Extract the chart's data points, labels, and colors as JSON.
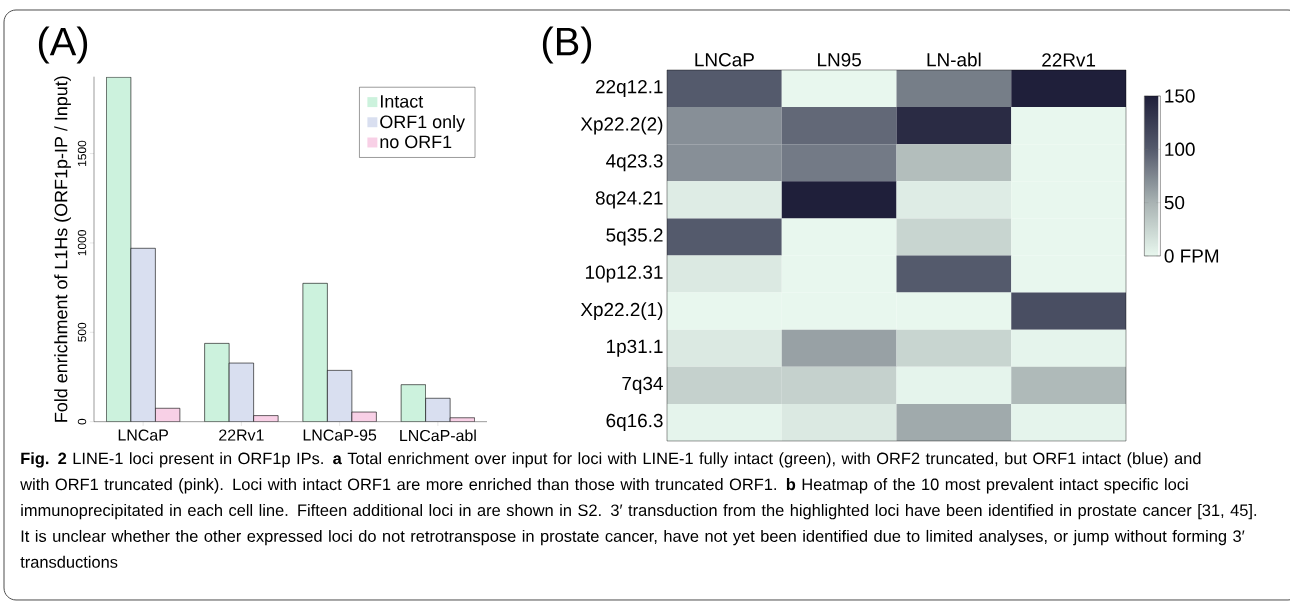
{
  "chart_data": [
    {
      "type": "bar",
      "title": "(A)",
      "ylabel": "Fold enrichment of L1Hs (ORF1p-IP / Input)",
      "categories": [
        "LNCaP",
        "22Rv1",
        "LNCaP-95",
        "LNCaP-abl"
      ],
      "series": [
        {
          "name": "Intact",
          "color": "#ccf2dd",
          "values": [
            1927,
            438,
            774,
            207
          ]
        },
        {
          "name": "ORF1 only",
          "color": "#d9dff0",
          "values": [
            970,
            328,
            287,
            131
          ]
        },
        {
          "name": "no ORF1",
          "color": "#f8d0e6",
          "values": [
            75,
            34,
            54,
            22
          ]
        }
      ],
      "ylim": [
        0,
        1930
      ],
      "yticks": [
        0,
        500,
        1000,
        1500
      ],
      "legend": "top right",
      "annotations": [
        "**Fig. 2** LINE-1 loci present in ORF1p IPs. **a** Total enrichment over input for loci with LINE-1 fully intact (green), with ORF2 truncated, but ORF1 intact (blue) and with ORF1 truncated (pink). Loci with intact ORF1 are more enriched than those with truncated ORF1. **b** Heatmap of the 10 most prevalent intact specific loci immunoprecipitated in each cell line. Fifteen additional loci in are shown in S2. 3′ transduction from the highlighted loci have been identified in prostate cancer [31, 45]. It is unclear whether the other expressed loci do not retrotranspose in prostate cancer, have not yet been identified due to limited analyses, or jump without forming 3′ transductions"
      ]
    },
    {
      "type": "heatmap",
      "title": "(B)",
      "categories": [
        "LNCaP",
        "LN95",
        "LN-abl",
        "22Rv1"
      ],
      "y_categories": [
        "22q12.1",
        "Xp22.2(2)",
        "4q23.3",
        "8q24.21",
        "5q35.2",
        "10p12.31",
        "Xp22.2(1)",
        "1p31.1",
        "7q34",
        "6q16.3"
      ],
      "cells": [
        [
          100,
          0,
          80,
          150
        ],
        [
          70,
          92,
          140,
          0
        ],
        [
          70,
          82,
          42,
          0
        ],
        [
          8,
          150,
          8,
          0
        ],
        [
          100,
          0,
          25,
          0
        ],
        [
          10,
          0,
          100,
          0
        ],
        [
          0,
          0,
          0,
          110
        ],
        [
          10,
          60,
          25,
          2
        ],
        [
          28,
          28,
          2,
          45
        ],
        [
          2,
          10,
          55,
          2
        ]
      ],
      "clim": [
        0,
        150
      ],
      "cticks": [
        {
          "value": 0,
          "label": "0 FPM"
        },
        {
          "value": 50,
          "label": "50"
        },
        {
          "value": 100,
          "label": "100"
        },
        {
          "value": 150,
          "label": "150"
        }
      ]
    }
  ]
}
